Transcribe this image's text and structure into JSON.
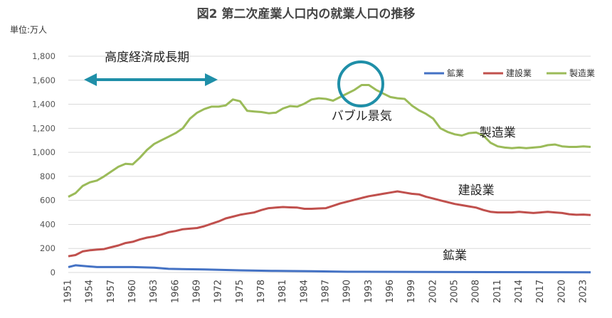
{
  "chart_data": {
    "type": "line",
    "title": "図2 第二次産業人口内の就業人口の推移",
    "unit_label": "単位:万人",
    "ylim": [
      0,
      1800
    ],
    "yticks": [
      0,
      200,
      400,
      600,
      800,
      1000,
      1200,
      1400,
      1600,
      1800
    ],
    "ytick_labels": [
      "0",
      "200",
      "400",
      "600",
      "800",
      "1,000",
      "1,200",
      "1,400",
      "1,600",
      "1,800"
    ],
    "xlim": [
      1951,
      2024
    ],
    "xticks": [
      1951,
      1954,
      1957,
      1960,
      1963,
      1966,
      1969,
      1972,
      1975,
      1978,
      1981,
      1984,
      1987,
      1990,
      1993,
      1996,
      1999,
      2002,
      2005,
      2008,
      2011,
      2014,
      2017,
      2020,
      2023
    ],
    "grid": true,
    "legend": "top-right",
    "series": [
      {
        "name": "鉱業",
        "color": "#4472C4",
        "x": [
          1951,
          1952,
          1953,
          1955,
          1957,
          1960,
          1963,
          1965,
          1970,
          1975,
          1980,
          1985,
          1990,
          2000,
          2010,
          2024
        ],
        "values": [
          45,
          60,
          55,
          45,
          45,
          45,
          40,
          30,
          25,
          18,
          13,
          10,
          6,
          5,
          3,
          2
        ]
      },
      {
        "name": "建設業",
        "color": "#C0504D",
        "x": [
          1951,
          1952,
          1953,
          1954,
          1955,
          1956,
          1957,
          1958,
          1959,
          1960,
          1961,
          1962,
          1963,
          1964,
          1965,
          1966,
          1967,
          1968,
          1969,
          1970,
          1971,
          1972,
          1973,
          1974,
          1975,
          1976,
          1977,
          1978,
          1979,
          1980,
          1981,
          1982,
          1983,
          1984,
          1985,
          1986,
          1987,
          1988,
          1989,
          1990,
          1991,
          1992,
          1993,
          1994,
          1995,
          1996,
          1997,
          1998,
          1999,
          2000,
          2001,
          2002,
          2003,
          2004,
          2005,
          2006,
          2007,
          2008,
          2009,
          2010,
          2011,
          2012,
          2013,
          2014,
          2015,
          2016,
          2017,
          2018,
          2019,
          2020,
          2021,
          2022,
          2023,
          2024
        ],
        "values": [
          135,
          145,
          175,
          185,
          190,
          195,
          210,
          225,
          245,
          255,
          275,
          290,
          300,
          315,
          335,
          345,
          360,
          365,
          370,
          385,
          405,
          425,
          450,
          465,
          480,
          490,
          500,
          520,
          535,
          540,
          545,
          542,
          540,
          530,
          530,
          533,
          535,
          555,
          575,
          590,
          605,
          620,
          635,
          645,
          655,
          665,
          675,
          665,
          655,
          650,
          630,
          615,
          600,
          585,
          570,
          560,
          550,
          540,
          520,
          505,
          500,
          500,
          500,
          505,
          500,
          495,
          500,
          505,
          500,
          495,
          485,
          480,
          482,
          478
        ]
      },
      {
        "name": "製造業",
        "color": "#9BBB59",
        "x": [
          1951,
          1952,
          1953,
          1954,
          1955,
          1956,
          1957,
          1958,
          1959,
          1960,
          1961,
          1962,
          1963,
          1964,
          1965,
          1966,
          1967,
          1968,
          1969,
          1970,
          1971,
          1972,
          1973,
          1974,
          1975,
          1976,
          1977,
          1978,
          1979,
          1980,
          1981,
          1982,
          1983,
          1984,
          1985,
          1986,
          1987,
          1988,
          1989,
          1990,
          1991,
          1992,
          1993,
          1994,
          1995,
          1996,
          1997,
          1998,
          1999,
          2000,
          2001,
          2002,
          2003,
          2004,
          2005,
          2006,
          2007,
          2008,
          2009,
          2010,
          2011,
          2012,
          2013,
          2014,
          2015,
          2016,
          2017,
          2018,
          2019,
          2020,
          2021,
          2022,
          2023,
          2024
        ],
        "values": [
          630,
          660,
          720,
          750,
          765,
          800,
          840,
          880,
          905,
          900,
          955,
          1020,
          1070,
          1100,
          1130,
          1160,
          1200,
          1280,
          1330,
          1360,
          1380,
          1380,
          1390,
          1440,
          1425,
          1345,
          1340,
          1335,
          1325,
          1330,
          1365,
          1385,
          1380,
          1405,
          1440,
          1450,
          1445,
          1430,
          1460,
          1490,
          1520,
          1560,
          1560,
          1520,
          1490,
          1460,
          1450,
          1445,
          1390,
          1350,
          1320,
          1280,
          1200,
          1170,
          1150,
          1140,
          1160,
          1165,
          1140,
          1080,
          1050,
          1040,
          1035,
          1040,
          1035,
          1040,
          1045,
          1060,
          1065,
          1050,
          1045,
          1045,
          1050,
          1045
        ]
      }
    ],
    "annotations": [
      {
        "text": "高度経済成長期",
        "x": 1962,
        "y": 1760
      },
      {
        "text": "バブル景気",
        "x": 1992,
        "y": 1270
      },
      {
        "text": "製造業",
        "x": 2011,
        "y": 1130
      },
      {
        "text": "建設業",
        "x": 2008,
        "y": 650
      },
      {
        "text": "鉱業",
        "x": 2005,
        "y": 110
      }
    ]
  }
}
